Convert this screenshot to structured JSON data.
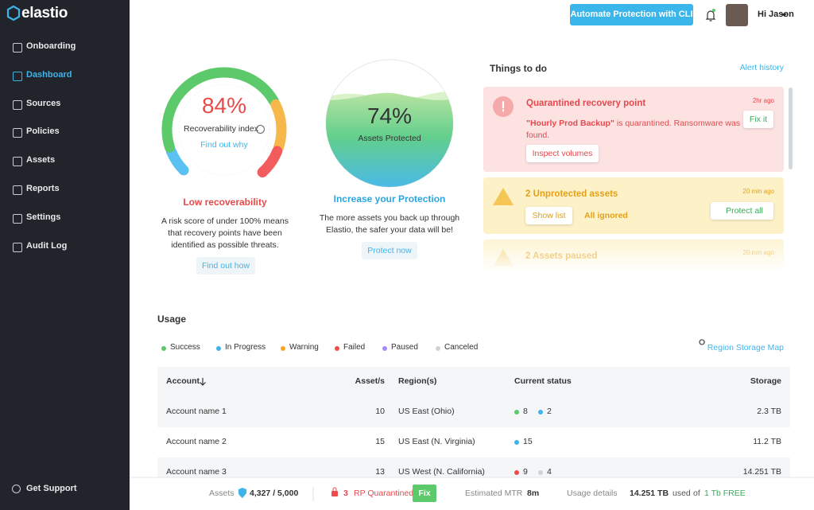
{
  "sidebar": {
    "logo": "elastio",
    "nav": [
      "Onboarding",
      "Dashboard",
      "Sources",
      "Policies",
      "Assets",
      "Reports",
      "Settings",
      "Audit Log"
    ],
    "support": "Get Support"
  },
  "header": {
    "cli_button": "Automate Protection with CLI",
    "greeting": "Hi Jason"
  },
  "recoverability": {
    "value": "84%",
    "label": "Recoverability index",
    "link": "Find out why",
    "status": "Low recoverability",
    "description": "A risk score of under 100% means that recovery points have been identified as possible threats.",
    "button": "Find out how"
  },
  "protection": {
    "value": "74%",
    "label": "Assets Protected",
    "status": "Increase your Protection",
    "description": "The more assets you back up through Elastio, the safer your data will be!",
    "button": "Protect now"
  },
  "todo": {
    "title": "Things to do",
    "link": "Alert history",
    "items": [
      {
        "title": "Quarantined recovery point",
        "time": "2hr ago",
        "message_bold": "\"Hourly  Prod Backup\"",
        "message_rest": " is quarantined. Ransomware was found.",
        "action": "Fix it",
        "button": "Inspect volumes"
      },
      {
        "title": "2 Unprotected assets",
        "time": "20 min ago",
        "button": "Show list",
        "note": "All ignored",
        "action": "Protect all"
      },
      {
        "title": "2 Assets paused",
        "time": "20 min ago"
      }
    ]
  },
  "usage": {
    "title": "Usage",
    "map_link": "Region Storage Map",
    "legend": [
      {
        "label": "Success",
        "color": "#5cc96b"
      },
      {
        "label": "In Progress",
        "color": "#3fb4ea"
      },
      {
        "label": "Warning",
        "color": "#f6a623"
      },
      {
        "label": "Failed",
        "color": "#ef4b4b"
      },
      {
        "label": "Paused",
        "color": "#a78bfa"
      },
      {
        "label": "Canceled",
        "color": "#d0d3d6"
      }
    ],
    "table": {
      "headers": [
        "Account",
        "Asset/s",
        "Region(s)",
        "Current status",
        "Storage"
      ],
      "rows": [
        {
          "account": "Account name 1",
          "assets": 10,
          "region": "US East (Ohio)",
          "status": [
            {
              "color": "#5cc96b",
              "count": 8
            },
            {
              "color": "#3fb4ea",
              "count": 2
            }
          ],
          "storage": "2.3 TB"
        },
        {
          "account": "Account name 2",
          "assets": 15,
          "region": "US East (N. Virginia)",
          "status": [
            {
              "color": "#3fb4ea",
              "count": 15
            }
          ],
          "storage": "11.2 TB"
        },
        {
          "account": "Account name 3",
          "assets": 13,
          "region": "US West (N. California)",
          "status": [
            {
              "color": "#ef4b4b",
              "count": 9
            },
            {
              "color": "#d0d3d6",
              "count": 4
            }
          ],
          "storage": "14.251 TB"
        }
      ]
    }
  },
  "footer": {
    "assets_label": "Assets",
    "assets_value": "4,327 / 5,000",
    "rp_count": "3",
    "rp_label": "RP Quarantined",
    "fix": "Fix",
    "mtr_label": "Estimated MTR",
    "mtr_value": "8m",
    "usage_label": "Usage details",
    "usage_value": "14.251 TB",
    "used": "used",
    "of": "of",
    "free": "1 Tb FREE"
  }
}
